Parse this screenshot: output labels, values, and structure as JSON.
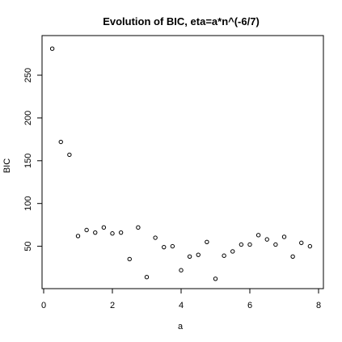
{
  "chart_data": {
    "type": "scatter",
    "title": "Evolution of BIC, eta=a*n^(-6/7)",
    "xlabel": "a",
    "ylabel": "BIC",
    "xlim": [
      0,
      8
    ],
    "ylim": [
      0,
      300
    ],
    "xticks": [
      0,
      2,
      4,
      6,
      8
    ],
    "yticks": [
      50,
      100,
      150,
      200,
      250
    ],
    "grid": false,
    "legend": "none",
    "marker": "open-circle",
    "x": [
      0.25,
      0.5,
      0.75,
      1.0,
      1.25,
      1.5,
      1.75,
      2.0,
      2.25,
      2.5,
      2.75,
      3.0,
      3.25,
      3.5,
      3.75,
      4.0,
      4.25,
      4.5,
      4.75,
      5.0,
      5.25,
      5.5,
      5.75,
      6.0,
      6.25,
      6.5,
      6.75,
      7.0,
      7.25,
      7.5,
      7.75
    ],
    "y": [
      281,
      172,
      157,
      62,
      69,
      66,
      72,
      65,
      66,
      35,
      72,
      14,
      60,
      49,
      50,
      22,
      38,
      40,
      55,
      12,
      39,
      44,
      52,
      52,
      63,
      58,
      52,
      61,
      38,
      54,
      50
    ]
  }
}
